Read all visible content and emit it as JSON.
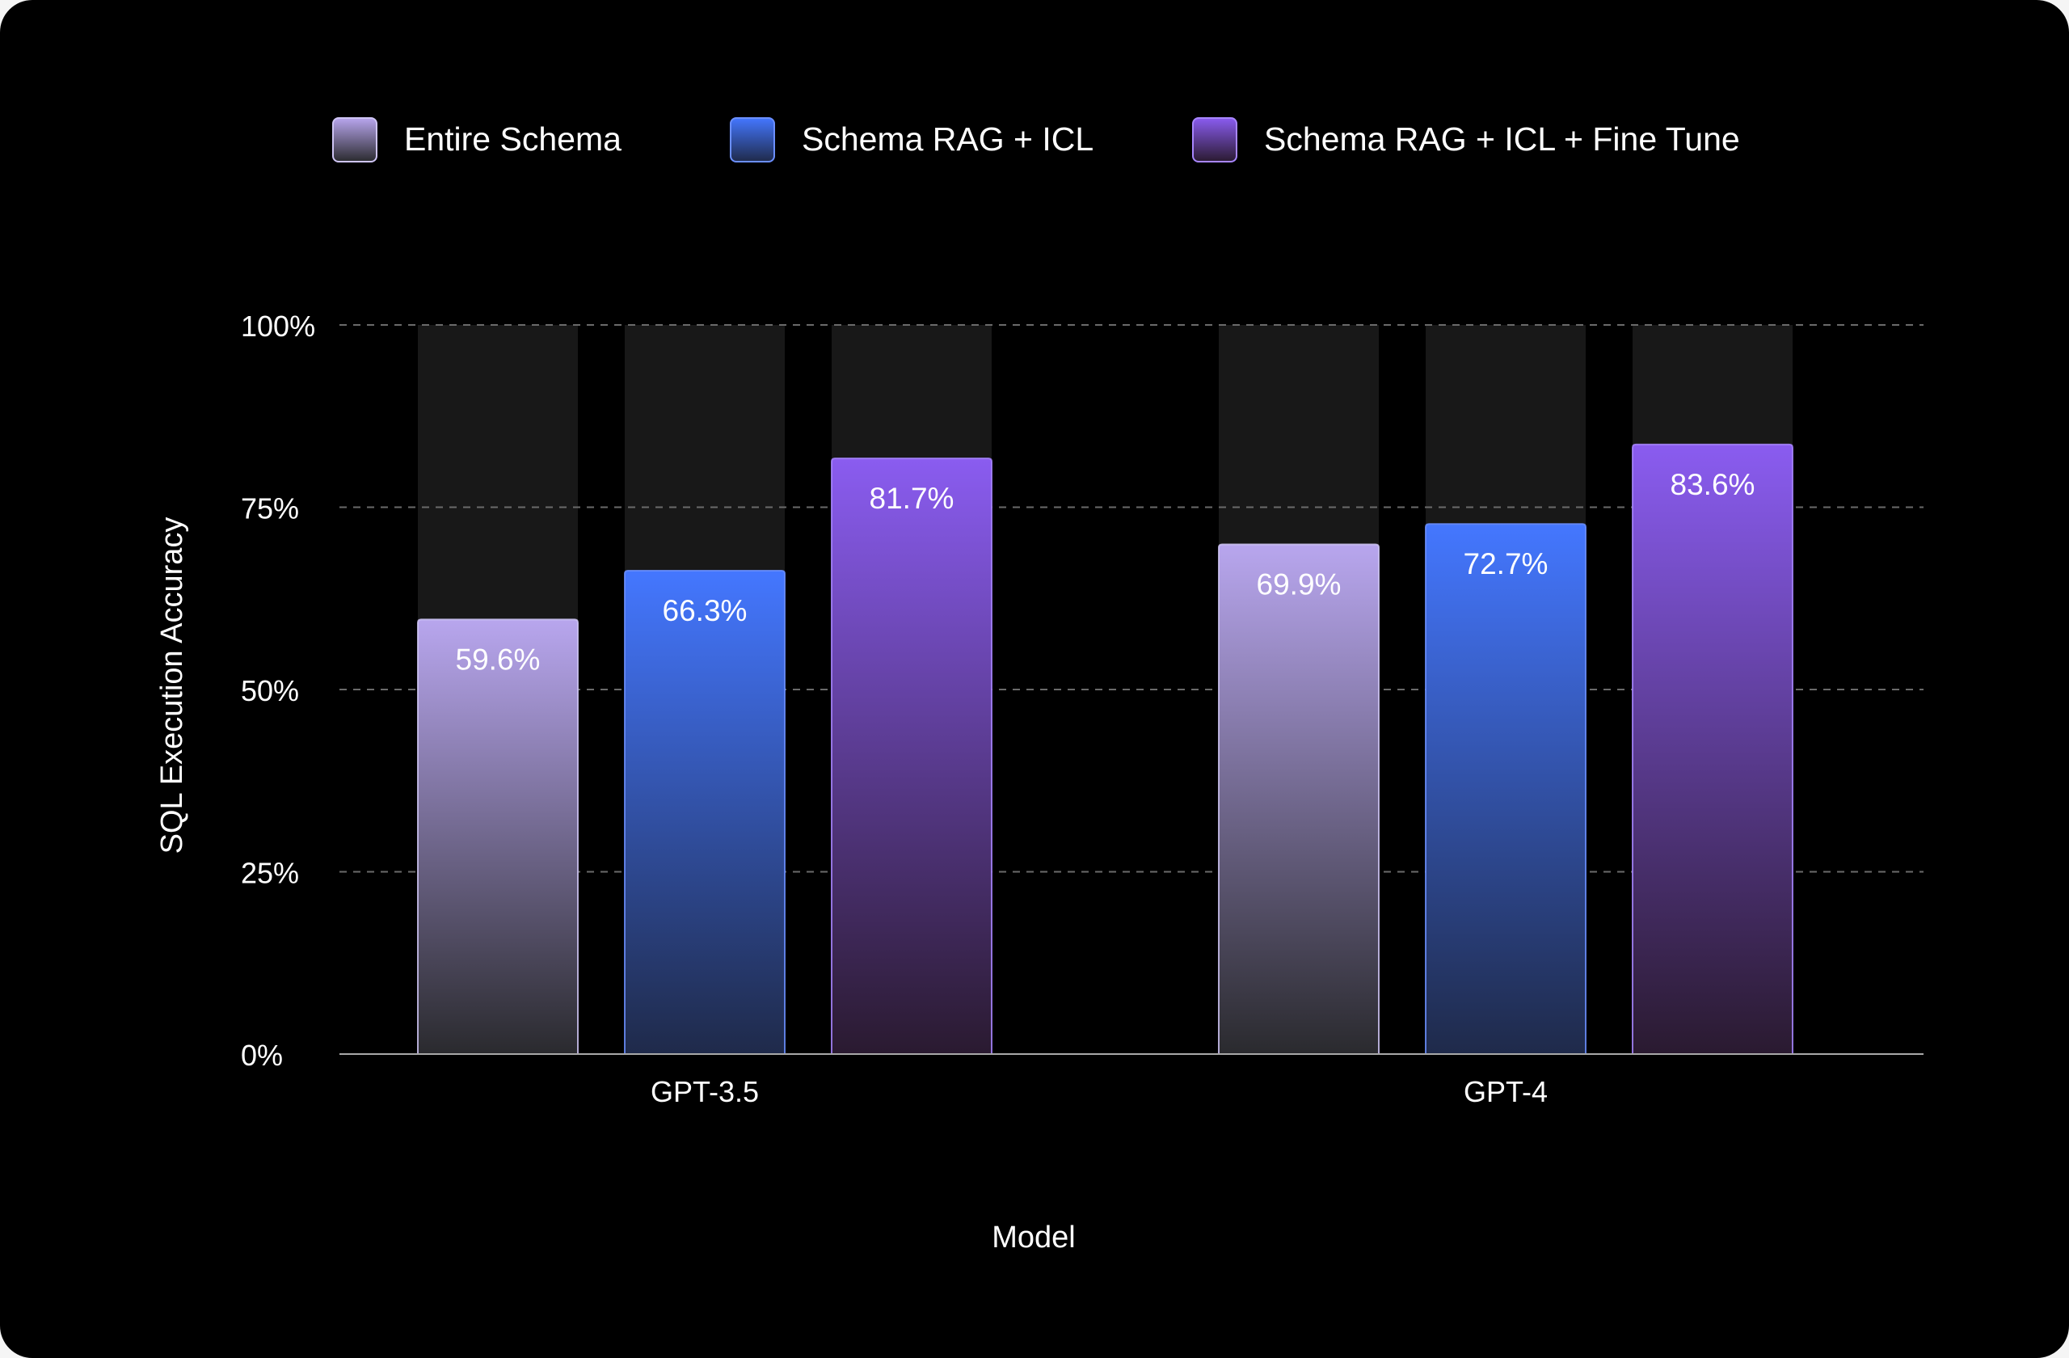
{
  "chart_data": {
    "type": "bar",
    "ylabel": "SQL Execution Accuracy",
    "xlabel": "Model",
    "ylim": [
      0,
      100
    ],
    "yticks": [
      {
        "value": 0,
        "label": "0%"
      },
      {
        "value": 25,
        "label": "25%"
      },
      {
        "value": 50,
        "label": "50%"
      },
      {
        "value": 75,
        "label": "75%"
      },
      {
        "value": 100,
        "label": "100%"
      }
    ],
    "grid": true,
    "legend_position": "top-center",
    "categories": [
      "GPT-3.5",
      "GPT-4"
    ],
    "series": [
      {
        "name": "Entire Schema",
        "values": [
          59.6,
          69.9
        ],
        "labels": [
          "59.6%",
          "69.9%"
        ],
        "color_top": "#b8a6ee",
        "color_bottom": "#2a2a2e",
        "border": "#cfc5f5"
      },
      {
        "name": "Schema RAG + ICL",
        "values": [
          66.3,
          72.7
        ],
        "labels": [
          "66.3%",
          "72.7%"
        ],
        "color_top": "#4477ff",
        "color_bottom": "#1f2a4a",
        "border": "#6b8fff"
      },
      {
        "name": "Schema RAG + ICL + Fine Tune",
        "values": [
          81.7,
          83.6
        ],
        "labels": [
          "81.7%",
          "83.6%"
        ],
        "color_top": "#8a5cf0",
        "color_bottom": "#2a1a30",
        "border": "#a886ff"
      }
    ]
  }
}
